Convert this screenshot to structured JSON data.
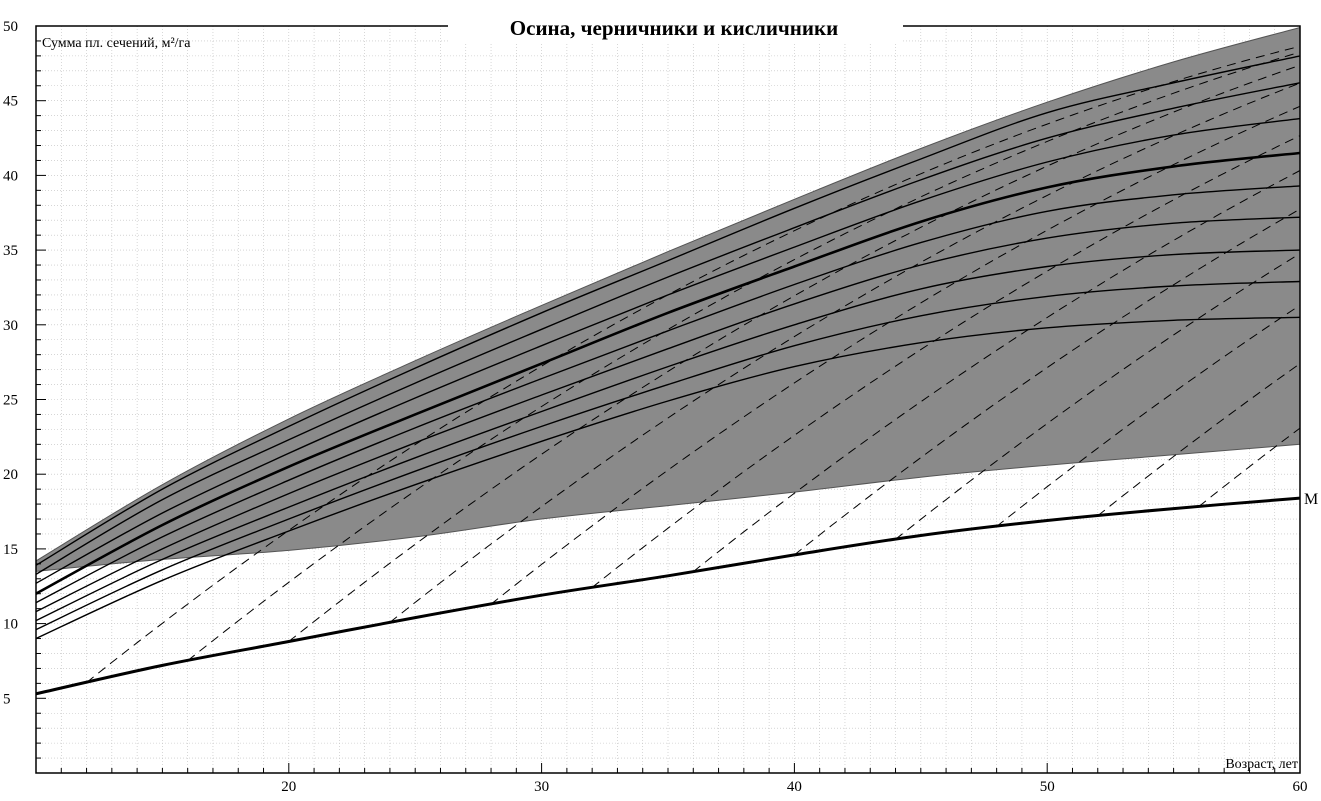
{
  "chart_data": {
    "type": "line",
    "title": "Осина, черничники и кисличники",
    "xlabel": "Возраст, лет",
    "ylabel": "Сумма пл. сечений, м²/га",
    "xlim": [
      10,
      60
    ],
    "ylim": [
      0,
      50
    ],
    "x_ticks": [
      20,
      30,
      40,
      50,
      60
    ],
    "y_ticks": [
      5,
      10,
      15,
      20,
      25,
      30,
      35,
      40,
      45,
      50
    ],
    "grid": true,
    "colors": {
      "band": "#8a8a8a",
      "line": "#000000",
      "grid": "#bdbdbd"
    },
    "shaded_band": {
      "x": [
        10,
        15,
        20,
        25,
        30,
        35,
        40,
        45,
        50,
        55,
        60
      ],
      "upper": [
        14.2,
        19.3,
        23.7,
        27.6,
        31.3,
        34.9,
        38.4,
        41.8,
        44.9,
        47.6,
        49.9
      ],
      "lower": [
        13.5,
        14.3,
        14.9,
        15.8,
        17.0,
        17.9,
        18.8,
        19.8,
        20.6,
        21.3,
        22.0
      ]
    },
    "min_curve": {
      "name": "M",
      "x": [
        10,
        15,
        20,
        25,
        30,
        35,
        40,
        45,
        50,
        55,
        60
      ],
      "y": [
        5.3,
        7.2,
        8.8,
        10.4,
        11.9,
        13.2,
        14.6,
        15.9,
        16.9,
        17.7,
        18.4
      ]
    },
    "growth_curves": {
      "x": [
        10,
        15,
        20,
        25,
        30,
        35,
        40,
        45,
        50,
        55,
        60
      ],
      "series": [
        {
          "y": [
            13.9,
            19.0,
            23.2,
            27.1,
            30.8,
            34.3,
            37.8,
            41.1,
            44.2,
            46.2,
            48.0
          ]
        },
        {
          "y": [
            13.3,
            18.3,
            22.3,
            26.1,
            29.7,
            33.2,
            36.5,
            39.7,
            42.5,
            44.5,
            46.2
          ]
        },
        {
          "y": [
            12.7,
            17.4,
            21.4,
            25.1,
            28.6,
            32.0,
            35.2,
            38.3,
            40.9,
            42.7,
            43.8
          ]
        },
        {
          "y": [
            12.0,
            16.6,
            20.5,
            24.0,
            27.4,
            30.8,
            33.9,
            36.9,
            39.2,
            40.6,
            41.5
          ]
        },
        {
          "y": [
            11.4,
            15.8,
            19.6,
            23.1,
            26.4,
            29.6,
            32.7,
            35.5,
            37.6,
            38.7,
            39.3
          ]
        },
        {
          "y": [
            10.8,
            15.0,
            18.7,
            22.1,
            25.3,
            28.4,
            31.4,
            34.0,
            35.8,
            36.8,
            37.2
          ]
        },
        {
          "y": [
            10.2,
            14.3,
            17.8,
            21.1,
            24.2,
            27.2,
            30.0,
            32.4,
            33.9,
            34.7,
            35.0
          ]
        },
        {
          "y": [
            9.6,
            13.6,
            17.0,
            20.2,
            23.2,
            26.0,
            28.6,
            30.6,
            31.9,
            32.6,
            32.9
          ]
        },
        {
          "y": [
            9.0,
            12.9,
            16.2,
            19.3,
            22.2,
            24.9,
            27.2,
            28.8,
            29.8,
            30.3,
            30.5
          ]
        }
      ]
    },
    "dashed_lines": {
      "start_ages": [
        12,
        16,
        20,
        24,
        28,
        32,
        36,
        40,
        44,
        48,
        52,
        56
      ],
      "note_slope_per_year": 1.35
    },
    "annotations": [
      "M"
    ]
  }
}
